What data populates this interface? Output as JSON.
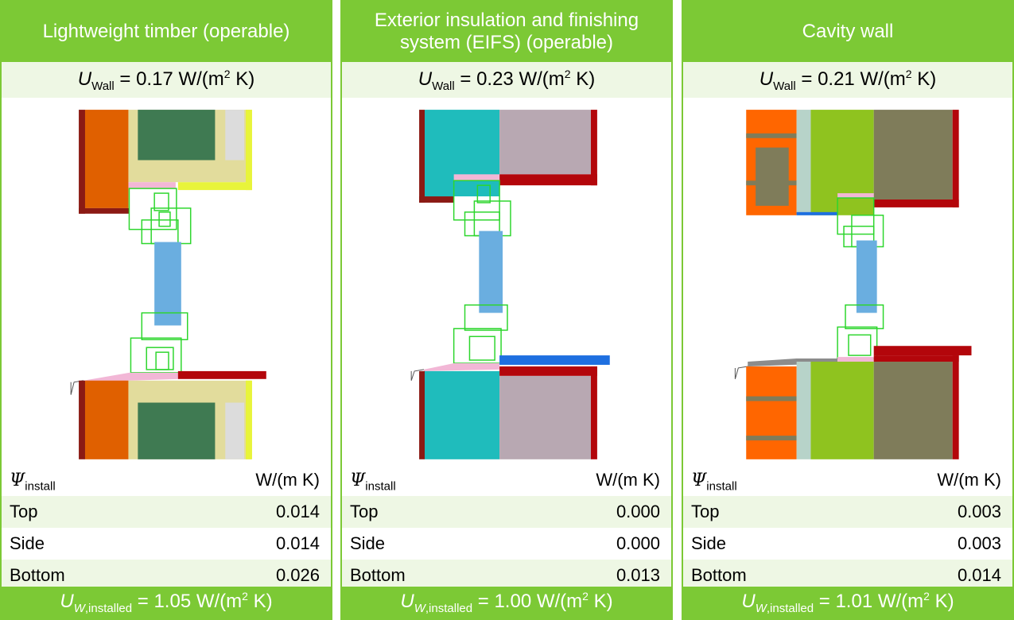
{
  "panels": [
    {
      "title": "Lightweight timber (operable)",
      "u_wall": "0.17",
      "psi_label": "install",
      "unit": "W/(m K)",
      "rows": [
        {
          "label": "Top",
          "value": "0.014"
        },
        {
          "label": "Side",
          "value": "0.014"
        },
        {
          "label": "Bottom",
          "value": "0.026"
        }
      ],
      "u_w_installed": "1.05"
    },
    {
      "title": "Exterior insulation and finishing system (EIFS) (operable)",
      "u_wall": "0.23",
      "psi_label": "install",
      "unit": "W/(m K)",
      "rows": [
        {
          "label": "Top",
          "value": "0.000"
        },
        {
          "label": "Side",
          "value": "0.000"
        },
        {
          "label": "Bottom",
          "value": "0.013"
        }
      ],
      "u_w_installed": "1.00"
    },
    {
      "title": "Cavity wall",
      "u_wall": "0.21",
      "psi_label": "install",
      "unit": "W/(m K)",
      "rows": [
        {
          "label": "Top",
          "value": "0.003"
        },
        {
          "label": "Side",
          "value": "0.003"
        },
        {
          "label": "Bottom",
          "value": "0.014"
        }
      ],
      "u_w_installed": "1.01"
    }
  ],
  "symbols": {
    "u": "U",
    "wall_sub": "Wall",
    "w": "W",
    "installed_sub": ",installed",
    "psi": "Ψ",
    "unit_prefix": "W/(m",
    "exp": "2",
    "unit_suffix": " K)",
    "eq": " = "
  },
  "colors": {
    "accent_green": "#7cc935",
    "light_row": "#eef7e4",
    "glass": "#6aaee0",
    "frame_green": "#2dd62d",
    "dark_red": "#8b1a14",
    "red": "#b3060b",
    "orange": "#e06000",
    "cream": "#e2dc9c",
    "dark_green": "#3f7a52",
    "teal": "#1fbcbc",
    "mauve": "#b8a8b2",
    "lime": "#8fc31f",
    "olive": "#7f7c5a",
    "brick_orange": "#ff6600",
    "pale_cyan": "#b7d3c9",
    "pink": "#f2b7d6"
  }
}
